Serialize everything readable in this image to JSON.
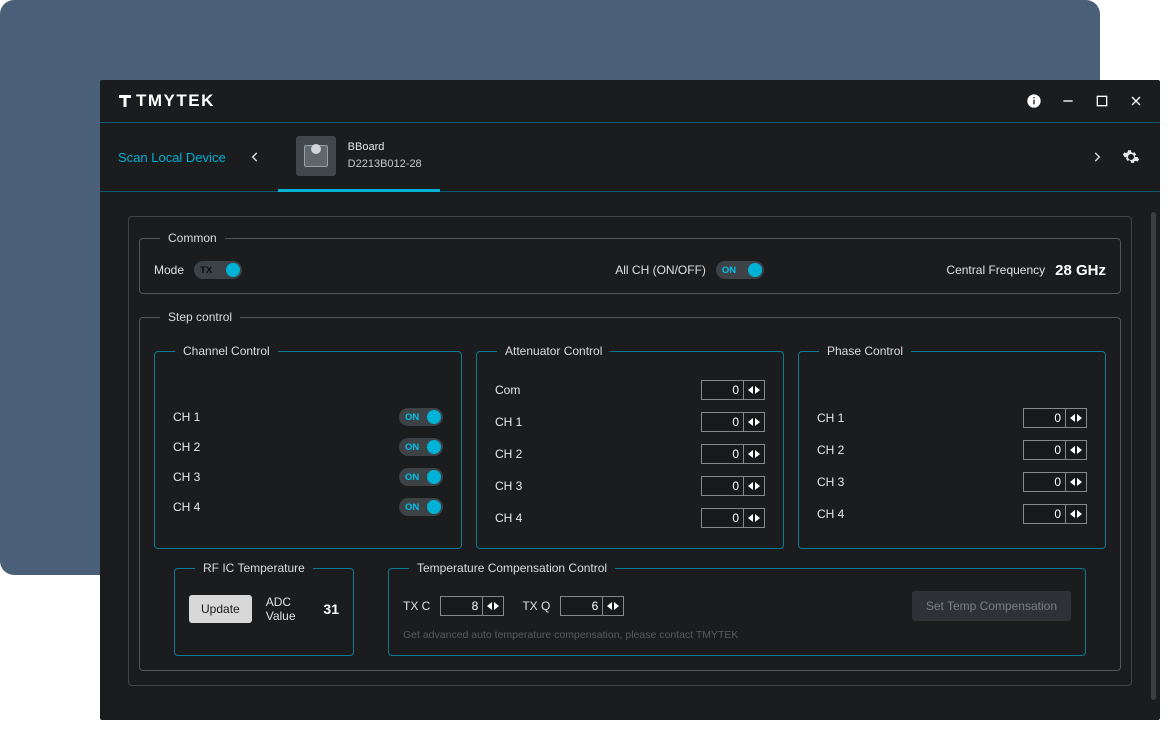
{
  "colors": {
    "backdrop": "#4a6078",
    "window": "#1a1c1e",
    "accent": "#00b2d6",
    "border_accent": "#0a7a94",
    "border_grey": "#555555",
    "text": "#e0e0e0"
  },
  "titlebar": {
    "brand": "TMYTEK"
  },
  "devicebar": {
    "scan_label": "Scan Local Device",
    "device_name": "BBoard",
    "device_serial": "D2213B012-28"
  },
  "common": {
    "legend": "Common",
    "mode_label": "Mode",
    "mode_value": "TX",
    "allch_label": "All CH (ON/OFF)",
    "allch_value": "ON",
    "cf_label": "Central Frequency",
    "cf_value": "28 GHz"
  },
  "step": {
    "legend": "Step control",
    "channel": {
      "legend": "Channel Control",
      "rows": [
        {
          "label": "CH 1",
          "state": "ON"
        },
        {
          "label": "CH 2",
          "state": "ON"
        },
        {
          "label": "CH 3",
          "state": "ON"
        },
        {
          "label": "CH 4",
          "state": "ON"
        }
      ]
    },
    "attenuator": {
      "legend": "Attenuator Control",
      "rows": [
        {
          "label": "Com",
          "value": 0
        },
        {
          "label": "CH 1",
          "value": 0
        },
        {
          "label": "CH 2",
          "value": 0
        },
        {
          "label": "CH 3",
          "value": 0
        },
        {
          "label": "CH 4",
          "value": 0
        }
      ]
    },
    "phase": {
      "legend": "Phase Control",
      "rows": [
        {
          "label": "CH 1",
          "value": 0
        },
        {
          "label": "CH 2",
          "value": 0
        },
        {
          "label": "CH 3",
          "value": 0
        },
        {
          "label": "CH 4",
          "value": 0
        }
      ]
    }
  },
  "rf": {
    "legend": "RF IC Temperature",
    "update_label": "Update",
    "adc_label": "ADC Value",
    "adc_value": "31"
  },
  "temp": {
    "legend": "Temperature Compensation Control",
    "txc_label": "TX C",
    "txc_value": 8,
    "txq_label": "TX Q",
    "txq_value": 6,
    "hint": "Get advanced auto temperature compensation, please contact TMYTEK",
    "set_label": "Set Temp Compensation"
  }
}
